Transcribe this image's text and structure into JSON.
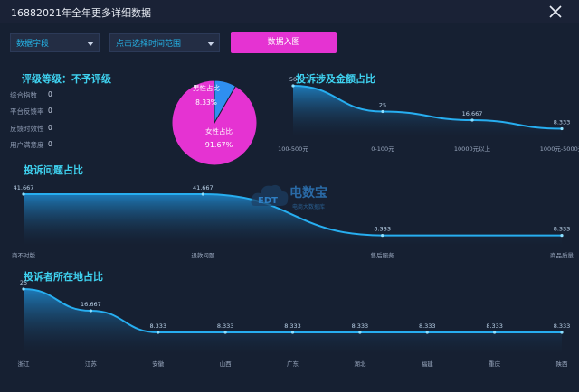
{
  "window": {
    "title": "16882021年全年更多详细数据"
  },
  "toolbar": {
    "data_field": "数据字段",
    "time_range_placeholder": "点击选择时间范围",
    "action_button": "数据入图"
  },
  "rating": {
    "title": "评级等级：不予评级",
    "stats": [
      {
        "label": "综合指数",
        "value": "0"
      },
      {
        "label": "平台反馈率",
        "value": "0"
      },
      {
        "label": "反馈时效性",
        "value": "0"
      },
      {
        "label": "用户满意度",
        "value": "0"
      }
    ]
  },
  "watermark": {
    "brand": "电数宝",
    "sub": "电商大数据库",
    "logo": "EDT"
  },
  "colors": {
    "accent_cyan": "#3fd2f0",
    "line": "#27aef0",
    "magenta": "#e533d2",
    "male": "#2f8ff0"
  },
  "chart_data": [
    {
      "type": "pie",
      "title": "",
      "slices": [
        {
          "label": "男性占比",
          "value": 8.33,
          "display": "8.33%",
          "color": "#2f8ff0"
        },
        {
          "label": "女性占比",
          "value": 91.67,
          "display": "91.67%",
          "color": "#e533d2"
        }
      ]
    },
    {
      "type": "area",
      "title": "投诉涉及金额占比",
      "categories": [
        "100-500元",
        "0-100元",
        "10000元以上",
        "1000元-5000元"
      ],
      "values": [
        50,
        25,
        16.667,
        8.333
      ],
      "labels": [
        "50",
        "25",
        "16.667",
        "8.333"
      ],
      "ylim": [
        0,
        50
      ]
    },
    {
      "type": "area",
      "title": "投诉问题占比",
      "categories": [
        "商不对版",
        "退款问题",
        "售后服务",
        "商品质量"
      ],
      "values": [
        41.667,
        41.667,
        8.333,
        8.333
      ],
      "labels": [
        "41.667",
        "41.667",
        "8.333",
        "8.333"
      ],
      "ylim": [
        0,
        41.667
      ]
    },
    {
      "type": "area",
      "title": "投诉者所在地占比",
      "categories": [
        "浙江",
        "江苏",
        "安徽",
        "山西",
        "广东",
        "湖北",
        "福建",
        "重庆",
        "陕西"
      ],
      "values": [
        25,
        16.667,
        8.333,
        8.333,
        8.333,
        8.333,
        8.333,
        8.333,
        8.333
      ],
      "labels": [
        "25",
        "16.667",
        "8.333",
        "8.333",
        "8.333",
        "8.333",
        "8.333",
        "8.333",
        "8.333"
      ],
      "ylim": [
        0,
        25
      ]
    }
  ]
}
